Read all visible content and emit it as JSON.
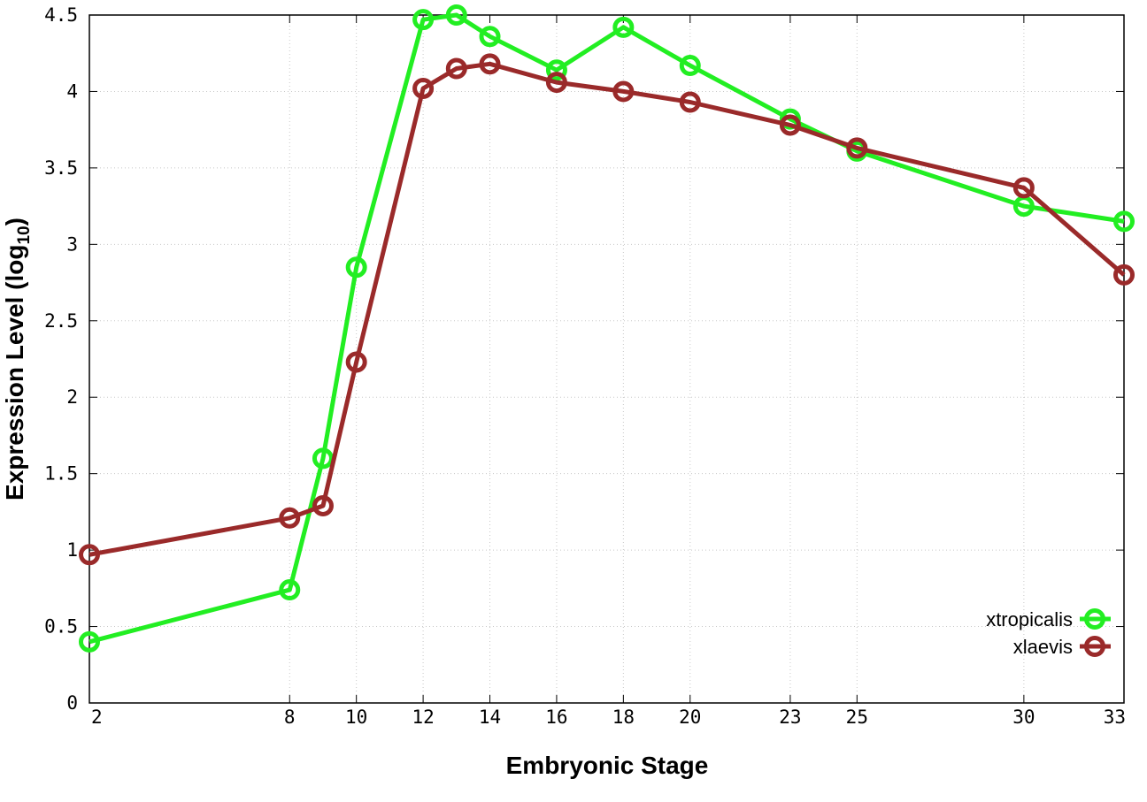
{
  "chart_data": {
    "type": "line",
    "xlabel": "Embryonic Stage",
    "ylabel_main": "Expression Level (log",
    "ylabel_sub": "10",
    "ylabel_close": ")",
    "x": [
      2,
      8,
      9,
      10,
      12,
      13,
      14,
      16,
      18,
      20,
      23,
      25,
      30,
      33
    ],
    "xticks": [
      2,
      8,
      10,
      12,
      14,
      16,
      18,
      20,
      23,
      25,
      30,
      33
    ],
    "xlim": [
      2,
      33
    ],
    "ylim": [
      0,
      4.5
    ],
    "yticks": [
      "0",
      "0.5",
      "1",
      "1.5",
      "2",
      "2.5",
      "3",
      "3.5",
      "4",
      "4.5"
    ],
    "grid": true,
    "legend_position": "bottom-right",
    "series": [
      {
        "name": "xtropicalis",
        "color": "#22ee22",
        "values": [
          0.4,
          0.74,
          1.6,
          2.85,
          4.47,
          4.5,
          4.36,
          4.14,
          4.42,
          4.17,
          3.82,
          3.61,
          3.25,
          3.15
        ]
      },
      {
        "name": "xlaevis",
        "color": "#9a2a2a",
        "values": [
          0.97,
          1.21,
          1.29,
          2.23,
          4.02,
          4.15,
          4.18,
          4.06,
          4.0,
          3.93,
          3.78,
          3.63,
          3.37,
          2.8
        ]
      }
    ]
  }
}
